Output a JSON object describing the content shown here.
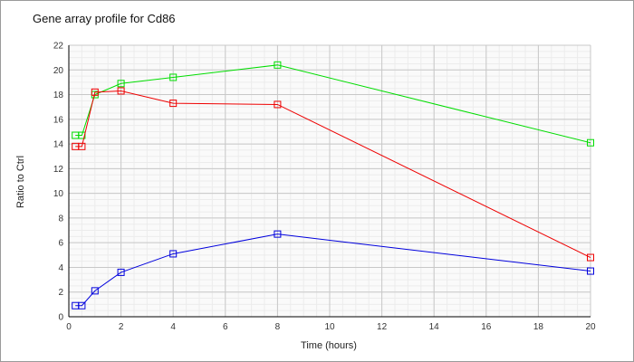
{
  "chart_data": {
    "type": "line",
    "title": "Gene array profile for Cd86",
    "xlabel": "Time (hours)",
    "ylabel": "Ratio to Ctrl",
    "xlim": [
      0,
      20
    ],
    "ylim": [
      0,
      22
    ],
    "xticks": [
      0,
      2,
      4,
      6,
      8,
      10,
      12,
      14,
      16,
      18,
      20
    ],
    "yticks": [
      0,
      2,
      4,
      6,
      8,
      10,
      12,
      14,
      16,
      18,
      20,
      22
    ],
    "grid": true,
    "x": [
      0.25,
      0.5,
      1,
      2,
      4,
      8,
      20
    ],
    "series": [
      {
        "name": "green",
        "color": "#00dd00",
        "values": [
          14.7,
          14.7,
          18.0,
          18.9,
          19.4,
          20.4,
          14.1
        ]
      },
      {
        "name": "red",
        "color": "#ee0000",
        "values": [
          13.8,
          13.8,
          18.2,
          18.3,
          17.3,
          17.2,
          4.8
        ]
      },
      {
        "name": "blue",
        "color": "#0000dd",
        "values": [
          0.9,
          0.9,
          2.1,
          3.6,
          5.1,
          6.7,
          3.7
        ]
      }
    ]
  }
}
